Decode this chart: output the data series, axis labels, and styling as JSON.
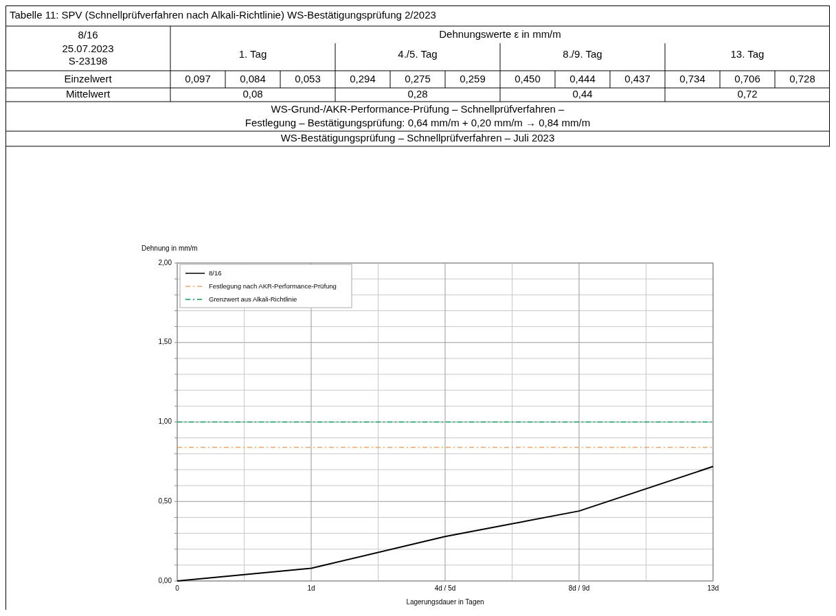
{
  "chart_data": {
    "type": "line",
    "title": "Tabelle 11: SPV (Schnellprüfverfahren nach Alkali-Richtlinie) WS-Bestätigungsprüfung 2/2023",
    "subtitle": "WS-Bestätigungsprüfung – Schnellprüfverfahren – Juli 2023",
    "xlabel": "Lagerungsdauer  in Tagen",
    "ylabel": "Dehnung in mm/m",
    "annotations": [
      "8/16",
      "25.07.2023",
      "S-23198",
      "Dehnungswerte ε in mm/m",
      "1. Tag",
      "4./5. Tag",
      "8./9. Tag",
      "13. Tag",
      "Einzelwert",
      "0,097",
      "0,084",
      "0,053",
      "0,294",
      "0,275",
      "0,259",
      "0,450",
      "0,444",
      "0,437",
      "0,734",
      "0,706",
      "0,728",
      "Mittelwert",
      "0,08",
      "0,28",
      "0,44",
      "0,72",
      "WS-Grund-/AKR-Performance-Prüfung – Schnellprüfverfahren –",
      "Festlegung – Bestätigungsprüfung: 0,64 mm/m + 0,20 mm/m → 0,84 mm/m"
    ],
    "categories": [
      "0",
      "1d",
      "4d / 5d",
      "8d / 9d",
      "13d"
    ],
    "series": [
      {
        "name": "8/16",
        "color": "#000000",
        "values": [
          0,
          0.08,
          0.28,
          0.44,
          0.72
        ]
      }
    ],
    "ref_lines": [
      {
        "axis": "y",
        "value": 0.84,
        "label": "Festlegung nach AKR-Performance-Prüfung",
        "color": "#f4a460",
        "line_style": "dashed"
      },
      {
        "axis": "y",
        "value": 1.0,
        "label": "Grenzwert aus Alkali-Richtlinie",
        "color": "#00a050",
        "line_style": "dashed"
      }
    ],
    "ylim": [
      0,
      2
    ],
    "yticks": [
      {
        "value": 0,
        "label": "0,00"
      },
      {
        "value": 0.1,
        "label": null
      },
      {
        "value": 0.2,
        "label": null
      },
      {
        "value": 0.3,
        "label": null
      },
      {
        "value": 0.4,
        "label": null
      },
      {
        "value": 0.5,
        "label": "0,50"
      },
      {
        "value": 0.6,
        "label": null
      },
      {
        "value": 0.7,
        "label": null
      },
      {
        "value": 0.8,
        "label": null
      },
      {
        "value": 0.9,
        "label": null
      },
      {
        "value": 1,
        "label": "1,00"
      },
      {
        "value": 1.1,
        "label": null
      },
      {
        "value": 1.2,
        "label": null
      },
      {
        "value": 1.3,
        "label": null
      },
      {
        "value": 1.4,
        "label": null
      },
      {
        "value": 1.5,
        "label": "1,50"
      },
      {
        "value": 1.6,
        "label": null
      },
      {
        "value": 1.7,
        "label": null
      },
      {
        "value": 1.8,
        "label": null
      },
      {
        "value": 1.9,
        "label": null
      },
      {
        "value": 2,
        "label": "2,00"
      }
    ],
    "grid": true,
    "legend": "top left",
    "line_style": "solid",
    "marker": "none"
  }
}
